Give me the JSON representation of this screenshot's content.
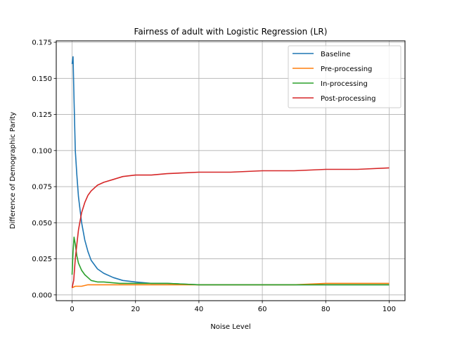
{
  "chart_data": {
    "type": "line",
    "title": "Fairness of adult with Logistic Regression (LR)",
    "xlabel": "Noise Level",
    "ylabel": "Difference of Demographic Parity",
    "xlim": [
      -5,
      105
    ],
    "ylim": [
      -0.004,
      0.176
    ],
    "xticks": [
      0,
      20,
      40,
      60,
      80,
      100
    ],
    "yticks": [
      0.0,
      0.025,
      0.05,
      0.075,
      0.1,
      0.125,
      0.15,
      0.175
    ],
    "xtick_labels": [
      "0",
      "20",
      "40",
      "60",
      "80",
      "100"
    ],
    "ytick_labels": [
      "0.000",
      "0.025",
      "0.050",
      "0.075",
      "0.100",
      "0.125",
      "0.150",
      "0.175"
    ],
    "grid": true,
    "legend_position": "top-right",
    "series": [
      {
        "name": "Baseline",
        "color": "#1f77b4",
        "x": [
          0,
          0.3,
          0.6,
          1,
          1.5,
          2,
          3,
          4,
          5,
          6,
          8,
          10,
          13,
          16,
          20,
          25,
          30,
          40,
          50,
          60,
          70,
          80,
          90,
          100
        ],
        "y": [
          0.16,
          0.165,
          0.135,
          0.1,
          0.083,
          0.068,
          0.05,
          0.038,
          0.03,
          0.024,
          0.018,
          0.015,
          0.012,
          0.01,
          0.009,
          0.008,
          0.008,
          0.007,
          0.007,
          0.007,
          0.007,
          0.007,
          0.007,
          0.007
        ]
      },
      {
        "name": "Pre-processing",
        "color": "#ff7f0e",
        "x": [
          0,
          1,
          2,
          3,
          5,
          10,
          20,
          30,
          40,
          50,
          60,
          70,
          80,
          90,
          100
        ],
        "y": [
          0.005,
          0.006,
          0.006,
          0.006,
          0.007,
          0.007,
          0.007,
          0.007,
          0.007,
          0.007,
          0.007,
          0.007,
          0.008,
          0.008,
          0.008
        ]
      },
      {
        "name": "In-processing",
        "color": "#2ca02c",
        "x": [
          0,
          0.3,
          0.6,
          1,
          1.5,
          2,
          3,
          4,
          5,
          6,
          8,
          10,
          15,
          20,
          30,
          40,
          50,
          60,
          70,
          80,
          90,
          100
        ],
        "y": [
          0.014,
          0.03,
          0.04,
          0.035,
          0.027,
          0.022,
          0.017,
          0.014,
          0.012,
          0.01,
          0.009,
          0.009,
          0.008,
          0.008,
          0.008,
          0.007,
          0.007,
          0.007,
          0.007,
          0.007,
          0.007,
          0.007
        ]
      },
      {
        "name": "Post-processing",
        "color": "#d62728",
        "x": [
          0,
          0.5,
          1,
          1.5,
          2,
          3,
          4,
          5,
          6,
          8,
          10,
          13,
          16,
          20,
          25,
          30,
          40,
          50,
          60,
          70,
          80,
          90,
          100
        ],
        "y": [
          0.005,
          0.01,
          0.025,
          0.035,
          0.045,
          0.057,
          0.064,
          0.069,
          0.072,
          0.076,
          0.078,
          0.08,
          0.082,
          0.083,
          0.083,
          0.084,
          0.085,
          0.085,
          0.086,
          0.086,
          0.087,
          0.087,
          0.088
        ]
      }
    ]
  }
}
